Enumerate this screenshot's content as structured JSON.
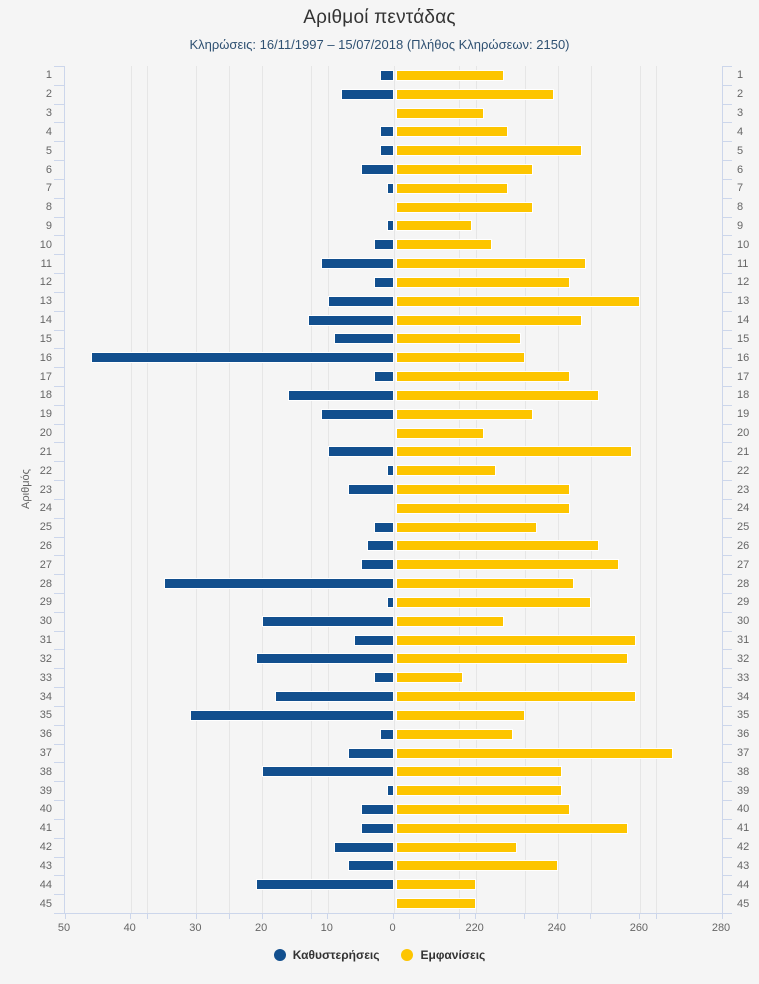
{
  "title": "Αριθμοί πεντάδας",
  "subtitle": "Κληρώσεις: 16/11/1997 – 15/07/2018 (Πλήθος Κληρώσεων: 2150)",
  "y_axis_title": "Αριθμός",
  "legend": [
    {
      "label": "Καθυστερήσεις",
      "color": "#124f8e"
    },
    {
      "label": "Εμφανίσεις",
      "color": "#fdc500"
    }
  ],
  "colors": {
    "background": "#f5f5f5",
    "delay_bar": "#124f8e",
    "appearance_bar": "#fdc500",
    "gridline": "#e6e6e6",
    "axis_line": "#ccd6eb",
    "tick_text": "#666666",
    "title_text": "#333333",
    "subtitle_text": "#2f5172"
  },
  "chart_data": {
    "type": "bar",
    "orientation": "horizontal-diverging",
    "title": "Αριθμοί πεντάδας",
    "subtitle": "Κληρώσεις: 16/11/1997 – 15/07/2018 (Πλήθος Κληρώσεων: 2150)",
    "ylabel": "Αριθμός",
    "grid": true,
    "legend_position": "bottom",
    "categories": [
      1,
      2,
      3,
      4,
      5,
      6,
      7,
      8,
      9,
      10,
      11,
      12,
      13,
      14,
      15,
      16,
      17,
      18,
      19,
      20,
      21,
      22,
      23,
      24,
      25,
      26,
      27,
      28,
      29,
      30,
      31,
      32,
      33,
      34,
      35,
      36,
      37,
      38,
      39,
      40,
      41,
      42,
      43,
      44,
      45
    ],
    "series": [
      {
        "name": "Καθυστερήσεις",
        "direction": "left",
        "color": "#124f8e",
        "axis": {
          "min": 0,
          "max": 50,
          "tick_step": 10,
          "tick_labels": [
            50,
            40,
            30,
            20,
            10,
            0
          ]
        },
        "values": [
          2,
          8,
          0,
          2,
          2,
          5,
          1,
          0,
          1,
          3,
          11,
          3,
          10,
          13,
          9,
          46,
          3,
          16,
          11,
          0,
          10,
          1,
          7,
          0,
          3,
          4,
          5,
          35,
          1,
          20,
          6,
          21,
          3,
          18,
          31,
          2,
          7,
          20,
          1,
          5,
          5,
          9,
          7,
          21,
          0
        ]
      },
      {
        "name": "Εμφανίσεις",
        "direction": "right",
        "color": "#fdc500",
        "axis": {
          "min": 200,
          "max": 280,
          "tick_step": 20,
          "tick_labels": [
            220,
            240,
            260,
            280
          ]
        },
        "values": [
          227,
          239,
          222,
          228,
          246,
          234,
          228,
          234,
          219,
          224,
          247,
          243,
          260,
          246,
          231,
          232,
          243,
          250,
          234,
          222,
          258,
          225,
          243,
          243,
          235,
          250,
          255,
          244,
          248,
          227,
          259,
          257,
          217,
          259,
          232,
          229,
          268,
          241,
          241,
          243,
          257,
          230,
          240,
          220,
          220
        ]
      }
    ]
  }
}
